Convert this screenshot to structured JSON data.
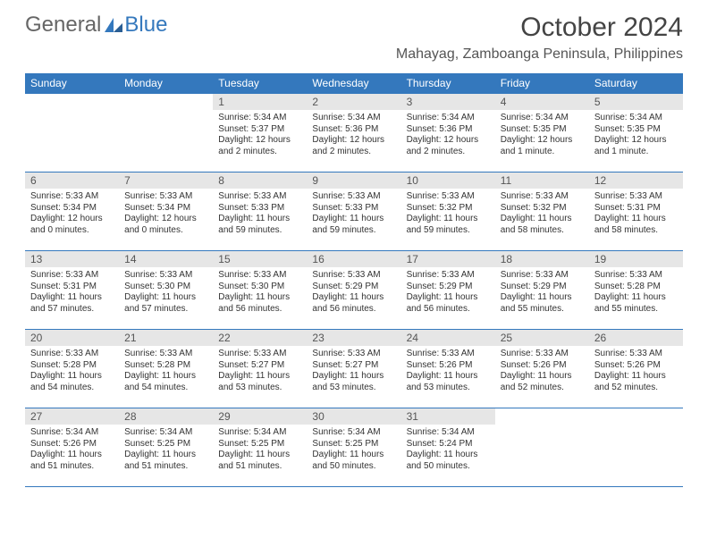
{
  "logo": {
    "general": "General",
    "blue": "Blue"
  },
  "title": {
    "month": "October 2024",
    "location": "Mahayag, Zamboanga Peninsula, Philippines"
  },
  "colors": {
    "accent": "#3478bd",
    "daynum_bg": "#e6e6e6",
    "text": "#333333",
    "header_text": "#ffffff",
    "bg": "#ffffff"
  },
  "weekdays": [
    "Sunday",
    "Monday",
    "Tuesday",
    "Wednesday",
    "Thursday",
    "Friday",
    "Saturday"
  ],
  "layout": {
    "first_weekday_index": 2,
    "days_in_month": 31
  },
  "days": {
    "1": {
      "sunrise": "5:34 AM",
      "sunset": "5:37 PM",
      "daylight": "12 hours and 2 minutes."
    },
    "2": {
      "sunrise": "5:34 AM",
      "sunset": "5:36 PM",
      "daylight": "12 hours and 2 minutes."
    },
    "3": {
      "sunrise": "5:34 AM",
      "sunset": "5:36 PM",
      "daylight": "12 hours and 2 minutes."
    },
    "4": {
      "sunrise": "5:34 AM",
      "sunset": "5:35 PM",
      "daylight": "12 hours and 1 minute."
    },
    "5": {
      "sunrise": "5:34 AM",
      "sunset": "5:35 PM",
      "daylight": "12 hours and 1 minute."
    },
    "6": {
      "sunrise": "5:33 AM",
      "sunset": "5:34 PM",
      "daylight": "12 hours and 0 minutes."
    },
    "7": {
      "sunrise": "5:33 AM",
      "sunset": "5:34 PM",
      "daylight": "12 hours and 0 minutes."
    },
    "8": {
      "sunrise": "5:33 AM",
      "sunset": "5:33 PM",
      "daylight": "11 hours and 59 minutes."
    },
    "9": {
      "sunrise": "5:33 AM",
      "sunset": "5:33 PM",
      "daylight": "11 hours and 59 minutes."
    },
    "10": {
      "sunrise": "5:33 AM",
      "sunset": "5:32 PM",
      "daylight": "11 hours and 59 minutes."
    },
    "11": {
      "sunrise": "5:33 AM",
      "sunset": "5:32 PM",
      "daylight": "11 hours and 58 minutes."
    },
    "12": {
      "sunrise": "5:33 AM",
      "sunset": "5:31 PM",
      "daylight": "11 hours and 58 minutes."
    },
    "13": {
      "sunrise": "5:33 AM",
      "sunset": "5:31 PM",
      "daylight": "11 hours and 57 minutes."
    },
    "14": {
      "sunrise": "5:33 AM",
      "sunset": "5:30 PM",
      "daylight": "11 hours and 57 minutes."
    },
    "15": {
      "sunrise": "5:33 AM",
      "sunset": "5:30 PM",
      "daylight": "11 hours and 56 minutes."
    },
    "16": {
      "sunrise": "5:33 AM",
      "sunset": "5:29 PM",
      "daylight": "11 hours and 56 minutes."
    },
    "17": {
      "sunrise": "5:33 AM",
      "sunset": "5:29 PM",
      "daylight": "11 hours and 56 minutes."
    },
    "18": {
      "sunrise": "5:33 AM",
      "sunset": "5:29 PM",
      "daylight": "11 hours and 55 minutes."
    },
    "19": {
      "sunrise": "5:33 AM",
      "sunset": "5:28 PM",
      "daylight": "11 hours and 55 minutes."
    },
    "20": {
      "sunrise": "5:33 AM",
      "sunset": "5:28 PM",
      "daylight": "11 hours and 54 minutes."
    },
    "21": {
      "sunrise": "5:33 AM",
      "sunset": "5:28 PM",
      "daylight": "11 hours and 54 minutes."
    },
    "22": {
      "sunrise": "5:33 AM",
      "sunset": "5:27 PM",
      "daylight": "11 hours and 53 minutes."
    },
    "23": {
      "sunrise": "5:33 AM",
      "sunset": "5:27 PM",
      "daylight": "11 hours and 53 minutes."
    },
    "24": {
      "sunrise": "5:33 AM",
      "sunset": "5:26 PM",
      "daylight": "11 hours and 53 minutes."
    },
    "25": {
      "sunrise": "5:33 AM",
      "sunset": "5:26 PM",
      "daylight": "11 hours and 52 minutes."
    },
    "26": {
      "sunrise": "5:33 AM",
      "sunset": "5:26 PM",
      "daylight": "11 hours and 52 minutes."
    },
    "27": {
      "sunrise": "5:34 AM",
      "sunset": "5:26 PM",
      "daylight": "11 hours and 51 minutes."
    },
    "28": {
      "sunrise": "5:34 AM",
      "sunset": "5:25 PM",
      "daylight": "11 hours and 51 minutes."
    },
    "29": {
      "sunrise": "5:34 AM",
      "sunset": "5:25 PM",
      "daylight": "11 hours and 51 minutes."
    },
    "30": {
      "sunrise": "5:34 AM",
      "sunset": "5:25 PM",
      "daylight": "11 hours and 50 minutes."
    },
    "31": {
      "sunrise": "5:34 AM",
      "sunset": "5:24 PM",
      "daylight": "11 hours and 50 minutes."
    }
  },
  "labels": {
    "sunrise": "Sunrise:",
    "sunset": "Sunset:",
    "daylight": "Daylight:"
  }
}
